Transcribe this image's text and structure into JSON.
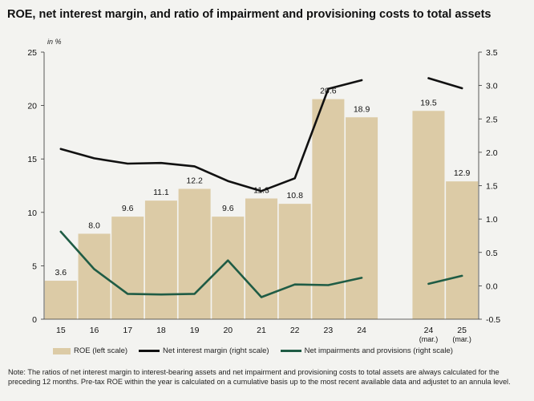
{
  "chart_data": {
    "type": "bar+line",
    "title": "ROE, net interest margin, and ratio of impairment and provisioning costs to total assets",
    "unit_label": "in %",
    "categories": [
      "15",
      "16",
      "17",
      "18",
      "19",
      "20",
      "21",
      "22",
      "23",
      "24",
      "",
      "24 (mar.)",
      "25 (mar.)"
    ],
    "tick_labels": [
      {
        "main": "15",
        "sub": ""
      },
      {
        "main": "16",
        "sub": ""
      },
      {
        "main": "17",
        "sub": ""
      },
      {
        "main": "18",
        "sub": ""
      },
      {
        "main": "19",
        "sub": ""
      },
      {
        "main": "20",
        "sub": ""
      },
      {
        "main": "21",
        "sub": ""
      },
      {
        "main": "22",
        "sub": ""
      },
      {
        "main": "23",
        "sub": ""
      },
      {
        "main": "24",
        "sub": ""
      },
      {
        "main": "",
        "sub": ""
      },
      {
        "main": "24",
        "sub": "(mar.)"
      },
      {
        "main": "25",
        "sub": "(mar.)"
      }
    ],
    "left_axis": {
      "min": 0,
      "max": 25,
      "ticks": [
        "0",
        "5",
        "10",
        "15",
        "20",
        "25"
      ]
    },
    "right_axis": {
      "min": -0.5,
      "max": 3.5,
      "ticks": [
        "-0.5",
        "0.0",
        "0.5",
        "1.0",
        "1.5",
        "2.0",
        "2.5",
        "3.0",
        "3.5"
      ]
    },
    "series": [
      {
        "name": "ROE (left scale)",
        "type": "bar",
        "axis": "left",
        "color": "#dccba6",
        "values": [
          3.6,
          8.0,
          9.6,
          11.1,
          12.2,
          9.6,
          11.3,
          10.8,
          20.6,
          18.9,
          null,
          19.5,
          12.9
        ],
        "labels": [
          "3.6",
          "8.0",
          "9.6",
          "11.1",
          "12.2",
          "9.6",
          "11.3",
          "10.8",
          "20.6",
          "18.9",
          "",
          "19.5",
          "12.9"
        ]
      },
      {
        "name": "Net interest margin (right scale)",
        "type": "line",
        "axis": "right",
        "color": "#111111",
        "values": [
          2.05,
          1.91,
          1.83,
          1.84,
          1.79,
          1.57,
          1.42,
          1.61,
          2.95,
          3.08,
          null,
          3.11,
          2.96
        ]
      },
      {
        "name": "Net impairments and provisions (right scale)",
        "type": "line",
        "axis": "right",
        "color": "#1f5c45",
        "values": [
          0.81,
          0.25,
          -0.12,
          -0.13,
          -0.12,
          0.38,
          -0.17,
          0.02,
          0.01,
          0.12,
          null,
          0.03,
          0.15
        ]
      }
    ]
  },
  "note": "Note: The ratios of net interest margin to interest-bearing assets and net impairment and provisioning costs to total assets are always calculated for the preceding 12 months. Pre-tax ROE within the year is calculated on a cumulative basis up to the most recent available data  and adjustet to an annula level."
}
